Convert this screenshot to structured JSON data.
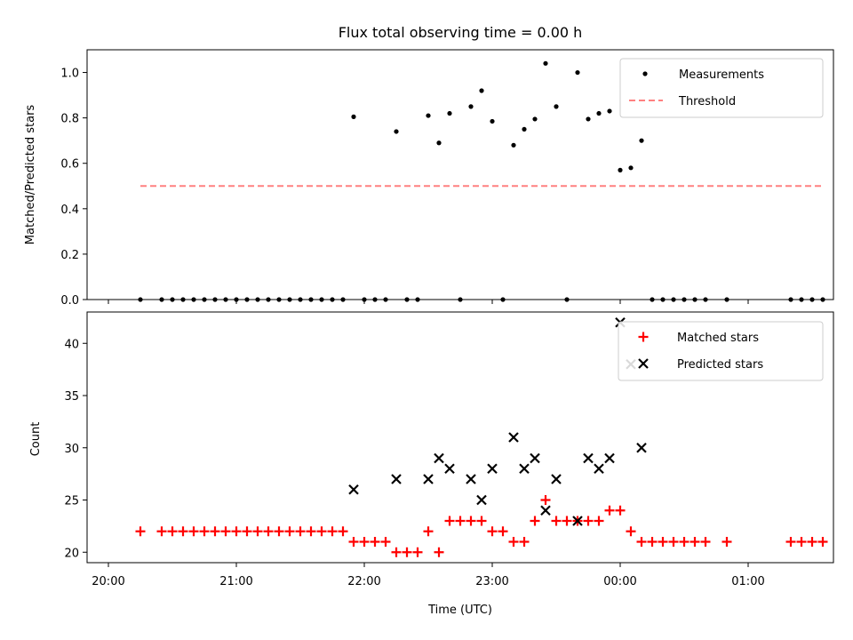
{
  "figure": {
    "title": "Flux total observing time = 0.00 h"
  },
  "chart_data": [
    {
      "type": "scatter",
      "title": "Flux total observing time = 0.00 h",
      "xlabel": "",
      "ylabel": "Matched/Predicted stars",
      "x_unit": "minutes from 20:00 UTC",
      "xlim": [
        -10,
        340
      ],
      "ylim": [
        0,
        1.1
      ],
      "yticks": [
        0.0,
        0.2,
        0.4,
        0.6,
        0.8,
        1.0
      ],
      "ytick_labels": [
        "0.0",
        "0.2",
        "0.4",
        "0.6",
        "0.8",
        "1.0"
      ],
      "legend": "top-right",
      "series": [
        {
          "name": "Measurements",
          "marker": "dot",
          "color": "#000000",
          "points": [
            [
              15,
              0
            ],
            [
              25,
              0
            ],
            [
              30,
              0
            ],
            [
              35,
              0
            ],
            [
              40,
              0
            ],
            [
              45,
              0
            ],
            [
              50,
              0
            ],
            [
              55,
              0
            ],
            [
              60,
              0
            ],
            [
              65,
              0
            ],
            [
              70,
              0
            ],
            [
              75,
              0
            ],
            [
              80,
              0
            ],
            [
              85,
              0
            ],
            [
              90,
              0
            ],
            [
              95,
              0
            ],
            [
              100,
              0
            ],
            [
              105,
              0
            ],
            [
              110,
              0
            ],
            [
              115,
              0.805
            ],
            [
              120,
              0
            ],
            [
              125,
              0
            ],
            [
              130,
              0
            ],
            [
              135,
              0.74
            ],
            [
              140,
              0
            ],
            [
              145,
              0
            ],
            [
              150,
              0.81
            ],
            [
              155,
              0.69
            ],
            [
              160,
              0.82
            ],
            [
              165,
              0
            ],
            [
              170,
              0.85
            ],
            [
              175,
              0.92
            ],
            [
              180,
              0.785
            ],
            [
              185,
              0
            ],
            [
              190,
              0.68
            ],
            [
              195,
              0.75
            ],
            [
              200,
              0.795
            ],
            [
              205,
              1.04
            ],
            [
              210,
              0.85
            ],
            [
              215,
              0
            ],
            [
              220,
              1.0
            ],
            [
              225,
              0.795
            ],
            [
              230,
              0.82
            ],
            [
              235,
              0.83
            ],
            [
              240,
              0.57
            ],
            [
              245,
              0.58
            ],
            [
              250,
              0.7
            ],
            [
              255,
              0
            ],
            [
              260,
              0
            ],
            [
              265,
              0
            ],
            [
              270,
              0
            ],
            [
              275,
              0
            ],
            [
              280,
              0
            ],
            [
              290,
              0
            ],
            [
              320,
              0
            ],
            [
              325,
              0
            ],
            [
              330,
              0
            ],
            [
              335,
              0
            ]
          ]
        },
        {
          "name": "Threshold",
          "line_style": "dashed",
          "color": "#ff8080",
          "points": [
            [
              15,
              0.5
            ],
            [
              335,
              0.5
            ]
          ]
        }
      ]
    },
    {
      "type": "scatter",
      "title": "",
      "xlabel": "Time (UTC)",
      "ylabel": "Count",
      "x_unit": "minutes from 20:00 UTC",
      "xlim": [
        -10,
        340
      ],
      "ylim": [
        19,
        43
      ],
      "yticks": [
        20,
        25,
        30,
        35,
        40
      ],
      "ytick_labels": [
        "20",
        "25",
        "30",
        "35",
        "40"
      ],
      "xticks": [
        0,
        60,
        120,
        180,
        240,
        300
      ],
      "xtick_labels": [
        "20:00",
        "21:00",
        "22:00",
        "23:00",
        "00:00",
        "01:00"
      ],
      "legend": "top-right",
      "series": [
        {
          "name": "Matched stars",
          "marker": "plus",
          "color": "#ff0000",
          "points": [
            [
              15,
              22
            ],
            [
              25,
              22
            ],
            [
              30,
              22
            ],
            [
              35,
              22
            ],
            [
              40,
              22
            ],
            [
              45,
              22
            ],
            [
              50,
              22
            ],
            [
              55,
              22
            ],
            [
              60,
              22
            ],
            [
              65,
              22
            ],
            [
              70,
              22
            ],
            [
              75,
              22
            ],
            [
              80,
              22
            ],
            [
              85,
              22
            ],
            [
              90,
              22
            ],
            [
              95,
              22
            ],
            [
              100,
              22
            ],
            [
              105,
              22
            ],
            [
              110,
              22
            ],
            [
              115,
              21
            ],
            [
              120,
              21
            ],
            [
              125,
              21
            ],
            [
              130,
              21
            ],
            [
              135,
              20
            ],
            [
              140,
              20
            ],
            [
              145,
              20
            ],
            [
              150,
              22
            ],
            [
              155,
              20
            ],
            [
              160,
              23
            ],
            [
              165,
              23
            ],
            [
              170,
              23
            ],
            [
              175,
              23
            ],
            [
              180,
              22
            ],
            [
              185,
              22
            ],
            [
              190,
              21
            ],
            [
              195,
              21
            ],
            [
              200,
              23
            ],
            [
              205,
              25
            ],
            [
              210,
              23
            ],
            [
              215,
              23
            ],
            [
              220,
              23
            ],
            [
              225,
              23
            ],
            [
              230,
              23
            ],
            [
              235,
              24
            ],
            [
              240,
              24
            ],
            [
              245,
              22
            ],
            [
              250,
              21
            ],
            [
              255,
              21
            ],
            [
              260,
              21
            ],
            [
              265,
              21
            ],
            [
              270,
              21
            ],
            [
              275,
              21
            ],
            [
              280,
              21
            ],
            [
              290,
              21
            ],
            [
              320,
              21
            ],
            [
              325,
              21
            ],
            [
              330,
              21
            ],
            [
              335,
              21
            ]
          ]
        },
        {
          "name": "Predicted stars",
          "marker": "x",
          "color": "#000000",
          "points": [
            [
              115,
              26
            ],
            [
              135,
              27
            ],
            [
              150,
              27
            ],
            [
              155,
              29
            ],
            [
              160,
              28
            ],
            [
              170,
              27
            ],
            [
              175,
              25
            ],
            [
              180,
              28
            ],
            [
              190,
              31
            ],
            [
              195,
              28
            ],
            [
              200,
              29
            ],
            [
              205,
              24
            ],
            [
              210,
              27
            ],
            [
              220,
              23
            ],
            [
              225,
              29
            ],
            [
              230,
              28
            ],
            [
              235,
              29
            ],
            [
              240,
              42
            ],
            [
              245,
              38
            ],
            [
              250,
              30
            ]
          ]
        }
      ]
    }
  ]
}
